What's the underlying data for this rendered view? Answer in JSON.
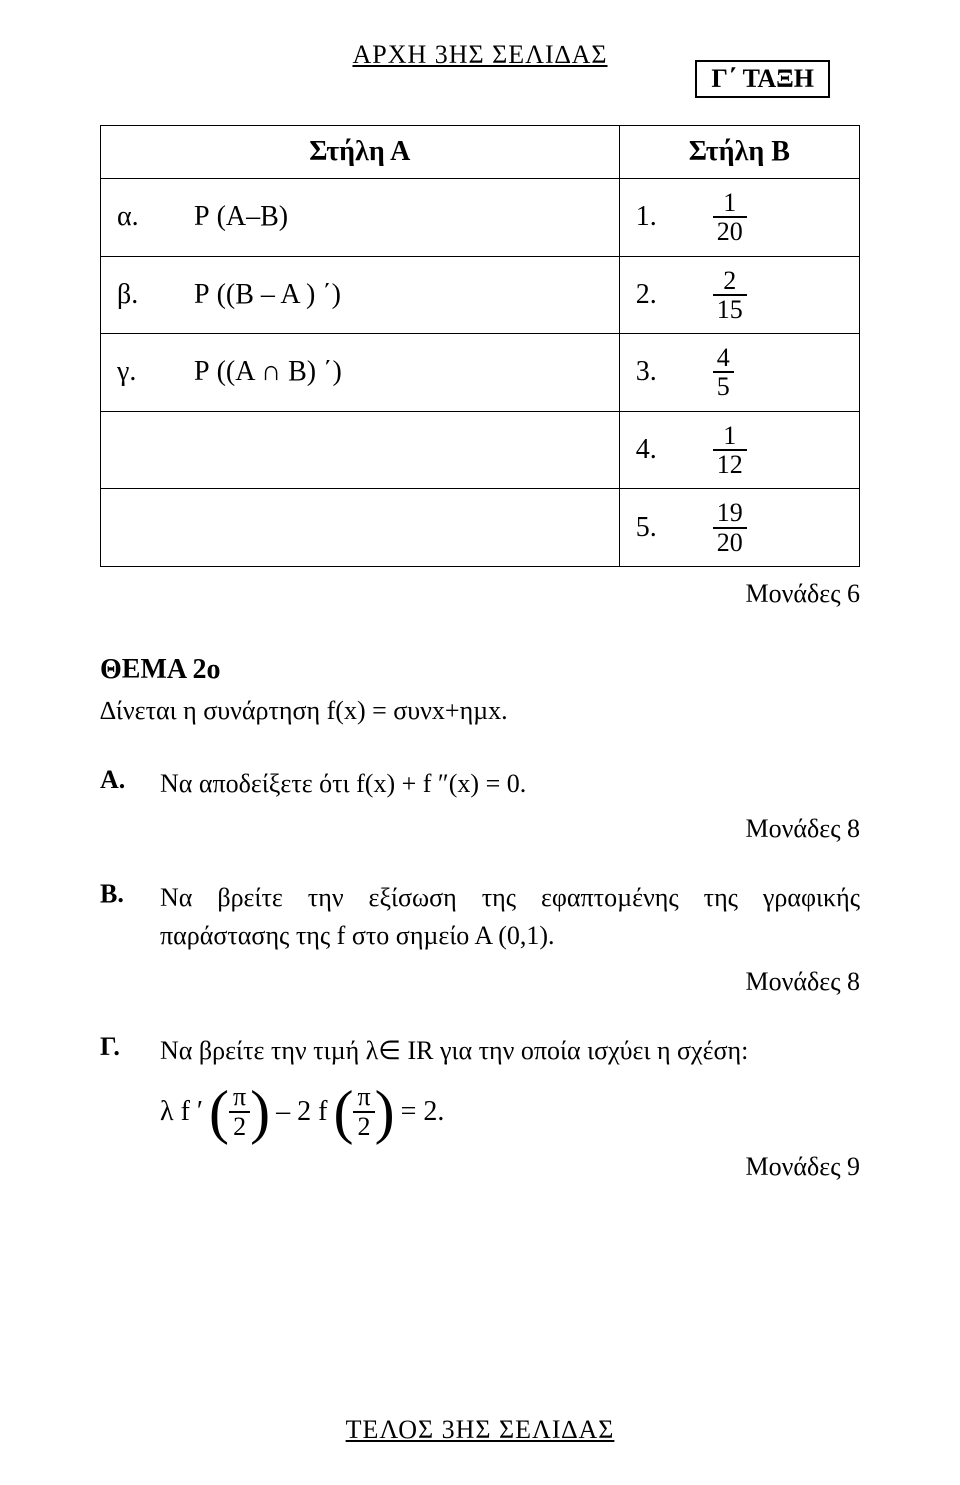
{
  "header": "ΑΡΧΗ 3ΗΣ ΣΕΛΙ∆ΑΣ",
  "class_box": "Γ΄ ΤΑΞΗ",
  "table": {
    "header_A": "Στήλη Α",
    "header_B": "Στήλη Β",
    "rows": [
      {
        "a_lbl": "α.",
        "a_expr": "Ρ (Α–Β)",
        "b_lbl": "1.",
        "b_num": "1",
        "b_den": "20"
      },
      {
        "a_lbl": "β.",
        "a_expr": "Ρ ((Β – Α ) ΄)",
        "b_lbl": "2.",
        "b_num": "2",
        "b_den": "15"
      },
      {
        "a_lbl": "γ.",
        "a_expr": "Ρ ((Α ∩ Β) ΄)",
        "b_lbl": "3.",
        "b_num": "4",
        "b_den": "5"
      },
      {
        "a_lbl": "",
        "a_expr": "",
        "b_lbl": "4.",
        "b_num": "1",
        "b_den": "12"
      },
      {
        "a_lbl": "",
        "a_expr": "",
        "b_lbl": "5.",
        "b_num": "19",
        "b_den": "20"
      }
    ]
  },
  "points_table": "Μονάδες 6",
  "thema": {
    "title": "ΘΕΜΑ 2ο",
    "intro": "∆ίνεται η συνάρτηση f(x) = συνx+ηµx."
  },
  "qA": {
    "label": "Α.",
    "text": "Να αποδείξετε ότι f(x) + f ″(x) = 0.",
    "points": "Μονάδες 8"
  },
  "qB": {
    "label": "Β.",
    "text": "Να βρείτε την εξίσωση της εφαπτοµένης της γραφικής παράστασης της f στο σηµείο Α (0,1).",
    "points": "Μονάδες 8"
  },
  "qC": {
    "label": "Γ.",
    "text": "Να βρείτε την τιµή λ∈ IR για την οποία ισχύει η σχέση:",
    "eq_prefix": "λ f ′",
    "pi": "π",
    "two_inner": "2",
    "mid": "  –  2 f",
    "tail": " = 2.",
    "points": "Μονάδες 9"
  },
  "footer": "ΤΕΛΟΣ 3ΗΣ ΣΕΛΙ∆ΑΣ"
}
